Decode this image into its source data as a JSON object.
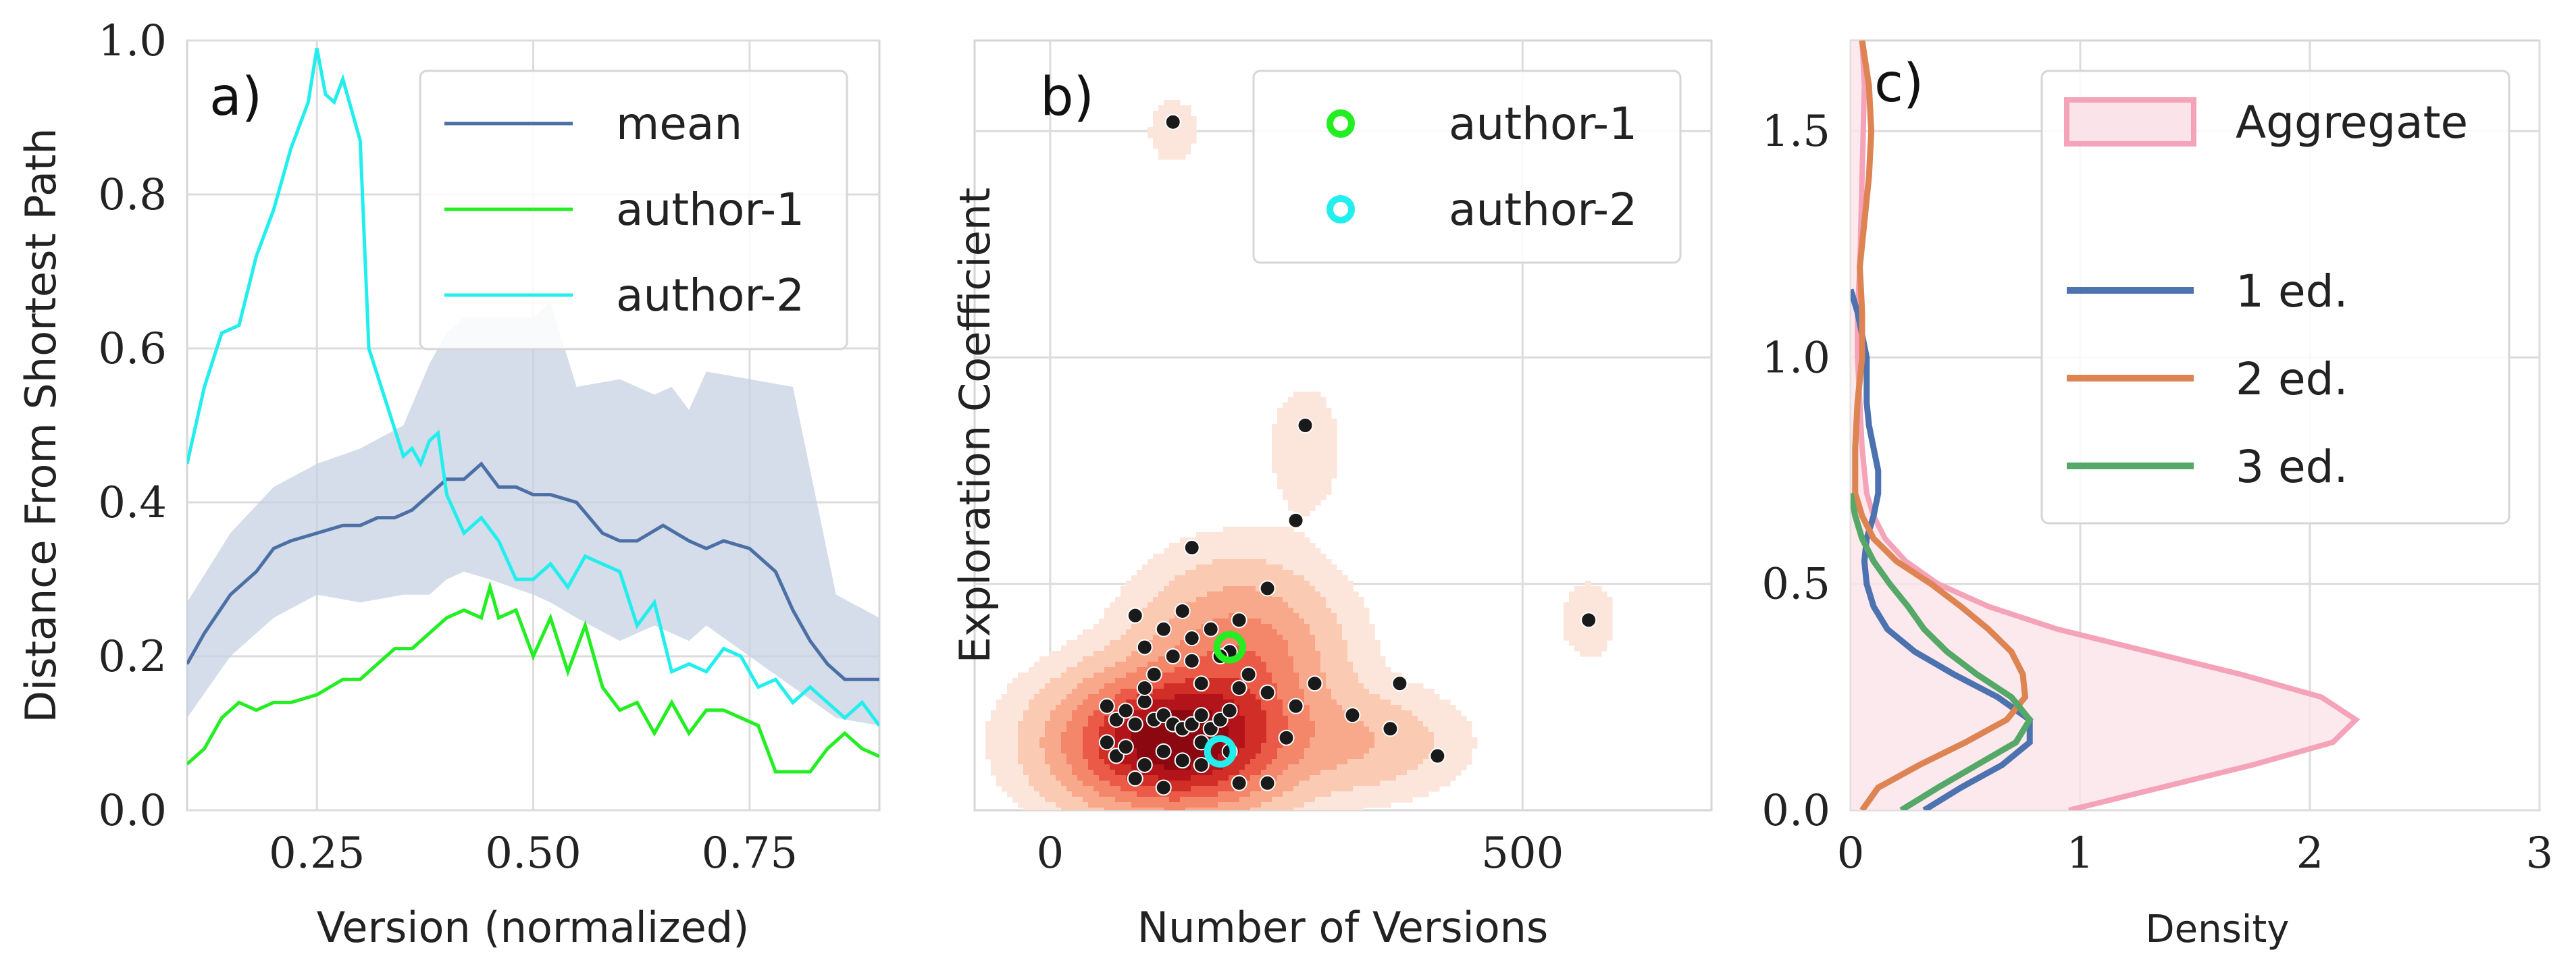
{
  "chart_data": [
    {
      "panel": "a)",
      "type": "line",
      "title": "",
      "xlabel": "Version (normalized)",
      "ylabel": "Distance From Shortest Path",
      "xlim": [
        0.1,
        0.9
      ],
      "ylim": [
        0.0,
        1.0
      ],
      "xticks": [
        "0.25",
        "0.50",
        "0.75"
      ],
      "xtick_values": [
        0.25,
        0.5,
        0.75
      ],
      "yticks": [
        "0.0",
        "0.2",
        "0.4",
        "0.6",
        "0.8",
        "1.0"
      ],
      "ytick_values": [
        0,
        0.2,
        0.4,
        0.6,
        0.8,
        1.0
      ],
      "grid": true,
      "legend_position": "top-right",
      "colors": {
        "mean": "#4c6fa5",
        "band": "#c6d1e2",
        "author-1": "#22ee22",
        "author-2": "#22eeee"
      },
      "band": {
        "x": [
          0.1,
          0.15,
          0.2,
          0.25,
          0.3,
          0.35,
          0.38,
          0.4,
          0.42,
          0.45,
          0.5,
          0.52,
          0.55,
          0.6,
          0.64,
          0.66,
          0.68,
          0.7,
          0.75,
          0.8,
          0.85,
          0.9
        ],
        "upper": [
          0.27,
          0.36,
          0.42,
          0.45,
          0.47,
          0.5,
          0.58,
          0.62,
          0.64,
          0.64,
          0.64,
          0.66,
          0.55,
          0.56,
          0.54,
          0.55,
          0.52,
          0.57,
          0.56,
          0.55,
          0.28,
          0.25
        ],
        "lower": [
          0.12,
          0.2,
          0.25,
          0.28,
          0.27,
          0.28,
          0.28,
          0.3,
          0.31,
          0.3,
          0.28,
          0.27,
          0.25,
          0.22,
          0.24,
          0.23,
          0.22,
          0.24,
          0.2,
          0.16,
          0.12,
          0.11
        ]
      },
      "series": [
        {
          "name": "mean",
          "x": [
            0.1,
            0.12,
            0.15,
            0.18,
            0.2,
            0.22,
            0.25,
            0.28,
            0.3,
            0.32,
            0.34,
            0.36,
            0.38,
            0.4,
            0.42,
            0.44,
            0.46,
            0.48,
            0.5,
            0.52,
            0.55,
            0.58,
            0.6,
            0.62,
            0.65,
            0.68,
            0.7,
            0.72,
            0.75,
            0.78,
            0.8,
            0.82,
            0.84,
            0.86,
            0.88,
            0.9
          ],
          "y": [
            0.19,
            0.23,
            0.28,
            0.31,
            0.34,
            0.35,
            0.36,
            0.37,
            0.37,
            0.38,
            0.38,
            0.39,
            0.41,
            0.43,
            0.43,
            0.45,
            0.42,
            0.42,
            0.41,
            0.41,
            0.4,
            0.36,
            0.35,
            0.35,
            0.37,
            0.35,
            0.34,
            0.35,
            0.34,
            0.31,
            0.26,
            0.22,
            0.19,
            0.17,
            0.17,
            0.17
          ]
        },
        {
          "name": "author-1",
          "x": [
            0.1,
            0.12,
            0.14,
            0.16,
            0.18,
            0.2,
            0.22,
            0.25,
            0.28,
            0.3,
            0.32,
            0.34,
            0.36,
            0.38,
            0.4,
            0.42,
            0.44,
            0.45,
            0.46,
            0.48,
            0.5,
            0.52,
            0.54,
            0.56,
            0.58,
            0.6,
            0.62,
            0.64,
            0.66,
            0.68,
            0.7,
            0.72,
            0.74,
            0.76,
            0.78,
            0.8,
            0.82,
            0.84,
            0.86,
            0.88,
            0.9
          ],
          "y": [
            0.06,
            0.08,
            0.12,
            0.14,
            0.13,
            0.14,
            0.14,
            0.15,
            0.17,
            0.17,
            0.19,
            0.21,
            0.21,
            0.23,
            0.25,
            0.26,
            0.25,
            0.29,
            0.25,
            0.26,
            0.2,
            0.25,
            0.18,
            0.24,
            0.16,
            0.13,
            0.14,
            0.1,
            0.14,
            0.1,
            0.13,
            0.13,
            0.12,
            0.11,
            0.05,
            0.05,
            0.05,
            0.08,
            0.1,
            0.08,
            0.07
          ]
        },
        {
          "name": "author-2",
          "x": [
            0.1,
            0.12,
            0.14,
            0.16,
            0.18,
            0.2,
            0.22,
            0.24,
            0.25,
            0.26,
            0.27,
            0.28,
            0.3,
            0.31,
            0.33,
            0.35,
            0.36,
            0.37,
            0.38,
            0.39,
            0.4,
            0.42,
            0.44,
            0.46,
            0.48,
            0.5,
            0.52,
            0.54,
            0.56,
            0.58,
            0.6,
            0.62,
            0.64,
            0.66,
            0.68,
            0.7,
            0.72,
            0.74,
            0.76,
            0.78,
            0.8,
            0.82,
            0.84,
            0.86,
            0.88,
            0.9
          ],
          "y": [
            0.45,
            0.55,
            0.62,
            0.63,
            0.72,
            0.78,
            0.86,
            0.92,
            0.99,
            0.93,
            0.92,
            0.95,
            0.87,
            0.6,
            0.53,
            0.46,
            0.47,
            0.45,
            0.48,
            0.49,
            0.41,
            0.36,
            0.38,
            0.35,
            0.3,
            0.3,
            0.32,
            0.29,
            0.33,
            0.32,
            0.31,
            0.24,
            0.27,
            0.18,
            0.19,
            0.18,
            0.21,
            0.2,
            0.16,
            0.17,
            0.14,
            0.16,
            0.14,
            0.12,
            0.14,
            0.11
          ]
        }
      ],
      "legend": [
        "mean",
        "author-1",
        "author-2"
      ]
    },
    {
      "panel": "b)",
      "type": "scatter",
      "title": "",
      "xlabel": "Number of Versions",
      "ylabel": "Exploration Coefficient",
      "xlim": [
        -80,
        700
      ],
      "ylim": [
        0.0,
        1.7
      ],
      "xticks": [
        "0",
        "500"
      ],
      "xtick_values": [
        0,
        500
      ],
      "yticks": [],
      "ytick_values": [
        0.5,
        1.0,
        1.5
      ],
      "grid": true,
      "legend_position": "top-right",
      "density_colors": [
        "#fce6dc",
        "#fbcab2",
        "#f8a98c",
        "#f4866a",
        "#ea5a47",
        "#d22e28",
        "#b3141a",
        "#8b0810"
      ],
      "density_kde": [
        {
          "cx": 130,
          "cy": 0.15,
          "sx": 70,
          "sy": 0.09,
          "w": 1.0
        },
        {
          "cx": 200,
          "cy": 0.33,
          "sx": 60,
          "sy": 0.12,
          "w": 0.35
        },
        {
          "cx": 330,
          "cy": 0.15,
          "sx": 60,
          "sy": 0.07,
          "w": 0.13
        },
        {
          "cx": 270,
          "cy": 0.8,
          "sx": 25,
          "sy": 0.09,
          "w": 0.05
        },
        {
          "cx": 130,
          "cy": 1.5,
          "sx": 18,
          "sy": 0.05,
          "w": 0.045
        },
        {
          "cx": 570,
          "cy": 0.42,
          "sx": 20,
          "sy": 0.06,
          "w": 0.045
        }
      ],
      "points": {
        "x": [
          130,
          270,
          260,
          90,
          230,
          150,
          200,
          100,
          120,
          140,
          170,
          190,
          210,
          110,
          150,
          160,
          200,
          230,
          260,
          280,
          320,
          360,
          370,
          410,
          60,
          70,
          80,
          90,
          100,
          110,
          120,
          130,
          140,
          150,
          160,
          170,
          180,
          190,
          60,
          70,
          80,
          100,
          120,
          140,
          160,
          190,
          250,
          90,
          120,
          160,
          200,
          230,
          570,
          180,
          150,
          100,
          130
        ],
        "y": [
          1.52,
          0.85,
          0.64,
          0.43,
          0.49,
          0.38,
          0.42,
          0.36,
          0.4,
          0.44,
          0.4,
          0.35,
          0.3,
          0.3,
          0.33,
          0.28,
          0.27,
          0.26,
          0.23,
          0.28,
          0.21,
          0.18,
          0.28,
          0.12,
          0.23,
          0.2,
          0.22,
          0.19,
          0.24,
          0.2,
          0.21,
          0.19,
          0.18,
          0.19,
          0.21,
          0.18,
          0.2,
          0.22,
          0.15,
          0.12,
          0.14,
          0.1,
          0.13,
          0.11,
          0.15,
          0.13,
          0.16,
          0.07,
          0.05,
          0.1,
          0.06,
          0.06,
          0.42,
          0.34,
          0.58,
          0.27,
          0.34
        ]
      },
      "highlight": [
        {
          "name": "author-1",
          "x": 190,
          "y": 0.36,
          "color": "#22ee22"
        },
        {
          "name": "author-2",
          "x": 180,
          "y": 0.13,
          "color": "#22eeee"
        }
      ],
      "legend": [
        "author-1",
        "author-2"
      ]
    },
    {
      "panel": "c)",
      "type": "area",
      "title": "",
      "xlabel": "Density",
      "ylabel": "",
      "xlim": [
        0,
        3
      ],
      "ylim": [
        0.0,
        1.7
      ],
      "xticks": [
        "0",
        "1",
        "2",
        "3"
      ],
      "xtick_values": [
        0,
        1,
        2,
        3
      ],
      "yticks": [
        "0.0",
        "0.5",
        "1.0",
        "1.5"
      ],
      "ytick_values": [
        0,
        0.5,
        1.0,
        1.5
      ],
      "grid": true,
      "legend_position": "top-right",
      "series": [
        {
          "name": "Aggregate",
          "color": "#f4a3b8",
          "fill": "#fbe3ea",
          "y": [
            0.0,
            0.05,
            0.1,
            0.15,
            0.2,
            0.25,
            0.3,
            0.35,
            0.4,
            0.45,
            0.5,
            0.55,
            0.6,
            0.65,
            0.7,
            0.8,
            0.9,
            1.0,
            1.1,
            1.2,
            1.4,
            1.6,
            1.7
          ],
          "density": [
            0.95,
            1.35,
            1.75,
            2.1,
            2.2,
            2.05,
            1.7,
            1.3,
            0.9,
            0.6,
            0.38,
            0.24,
            0.15,
            0.1,
            0.07,
            0.05,
            0.04,
            0.03,
            0.03,
            0.04,
            0.05,
            0.06,
            0.05
          ]
        },
        {
          "name": "1 ed.",
          "color": "#4c72b0",
          "y": [
            0.0,
            0.05,
            0.1,
            0.15,
            0.2,
            0.25,
            0.3,
            0.35,
            0.4,
            0.45,
            0.5,
            0.55,
            0.6,
            0.65,
            0.7,
            0.75,
            0.8,
            0.85,
            0.9,
            0.95,
            1.0,
            1.05,
            1.1,
            1.15
          ],
          "density": [
            0.32,
            0.48,
            0.66,
            0.78,
            0.78,
            0.64,
            0.45,
            0.28,
            0.16,
            0.1,
            0.07,
            0.06,
            0.07,
            0.1,
            0.12,
            0.12,
            0.1,
            0.08,
            0.07,
            0.07,
            0.07,
            0.05,
            0.03,
            0.0
          ]
        },
        {
          "name": "2 ed.",
          "color": "#dd8452",
          "y": [
            0.0,
            0.05,
            0.1,
            0.15,
            0.2,
            0.25,
            0.3,
            0.35,
            0.4,
            0.45,
            0.5,
            0.55,
            0.6,
            0.65,
            0.7,
            0.8,
            0.9,
            1.0,
            1.1,
            1.2,
            1.3,
            1.4,
            1.5,
            1.6,
            1.7
          ],
          "density": [
            0.05,
            0.12,
            0.3,
            0.5,
            0.68,
            0.76,
            0.75,
            0.7,
            0.6,
            0.48,
            0.35,
            0.2,
            0.1,
            0.05,
            0.02,
            0.02,
            0.03,
            0.05,
            0.05,
            0.04,
            0.06,
            0.08,
            0.09,
            0.08,
            0.05
          ]
        },
        {
          "name": "3 ed.",
          "color": "#55a868",
          "y": [
            0.0,
            0.05,
            0.1,
            0.15,
            0.2,
            0.25,
            0.3,
            0.35,
            0.4,
            0.45,
            0.5,
            0.55,
            0.6,
            0.65,
            0.7
          ],
          "density": [
            0.22,
            0.38,
            0.55,
            0.72,
            0.78,
            0.7,
            0.55,
            0.42,
            0.32,
            0.25,
            0.17,
            0.1,
            0.05,
            0.02,
            0.0
          ]
        }
      ],
      "legend": [
        "Aggregate",
        "1 ed.",
        "2 ed.",
        "3 ed."
      ]
    }
  ]
}
